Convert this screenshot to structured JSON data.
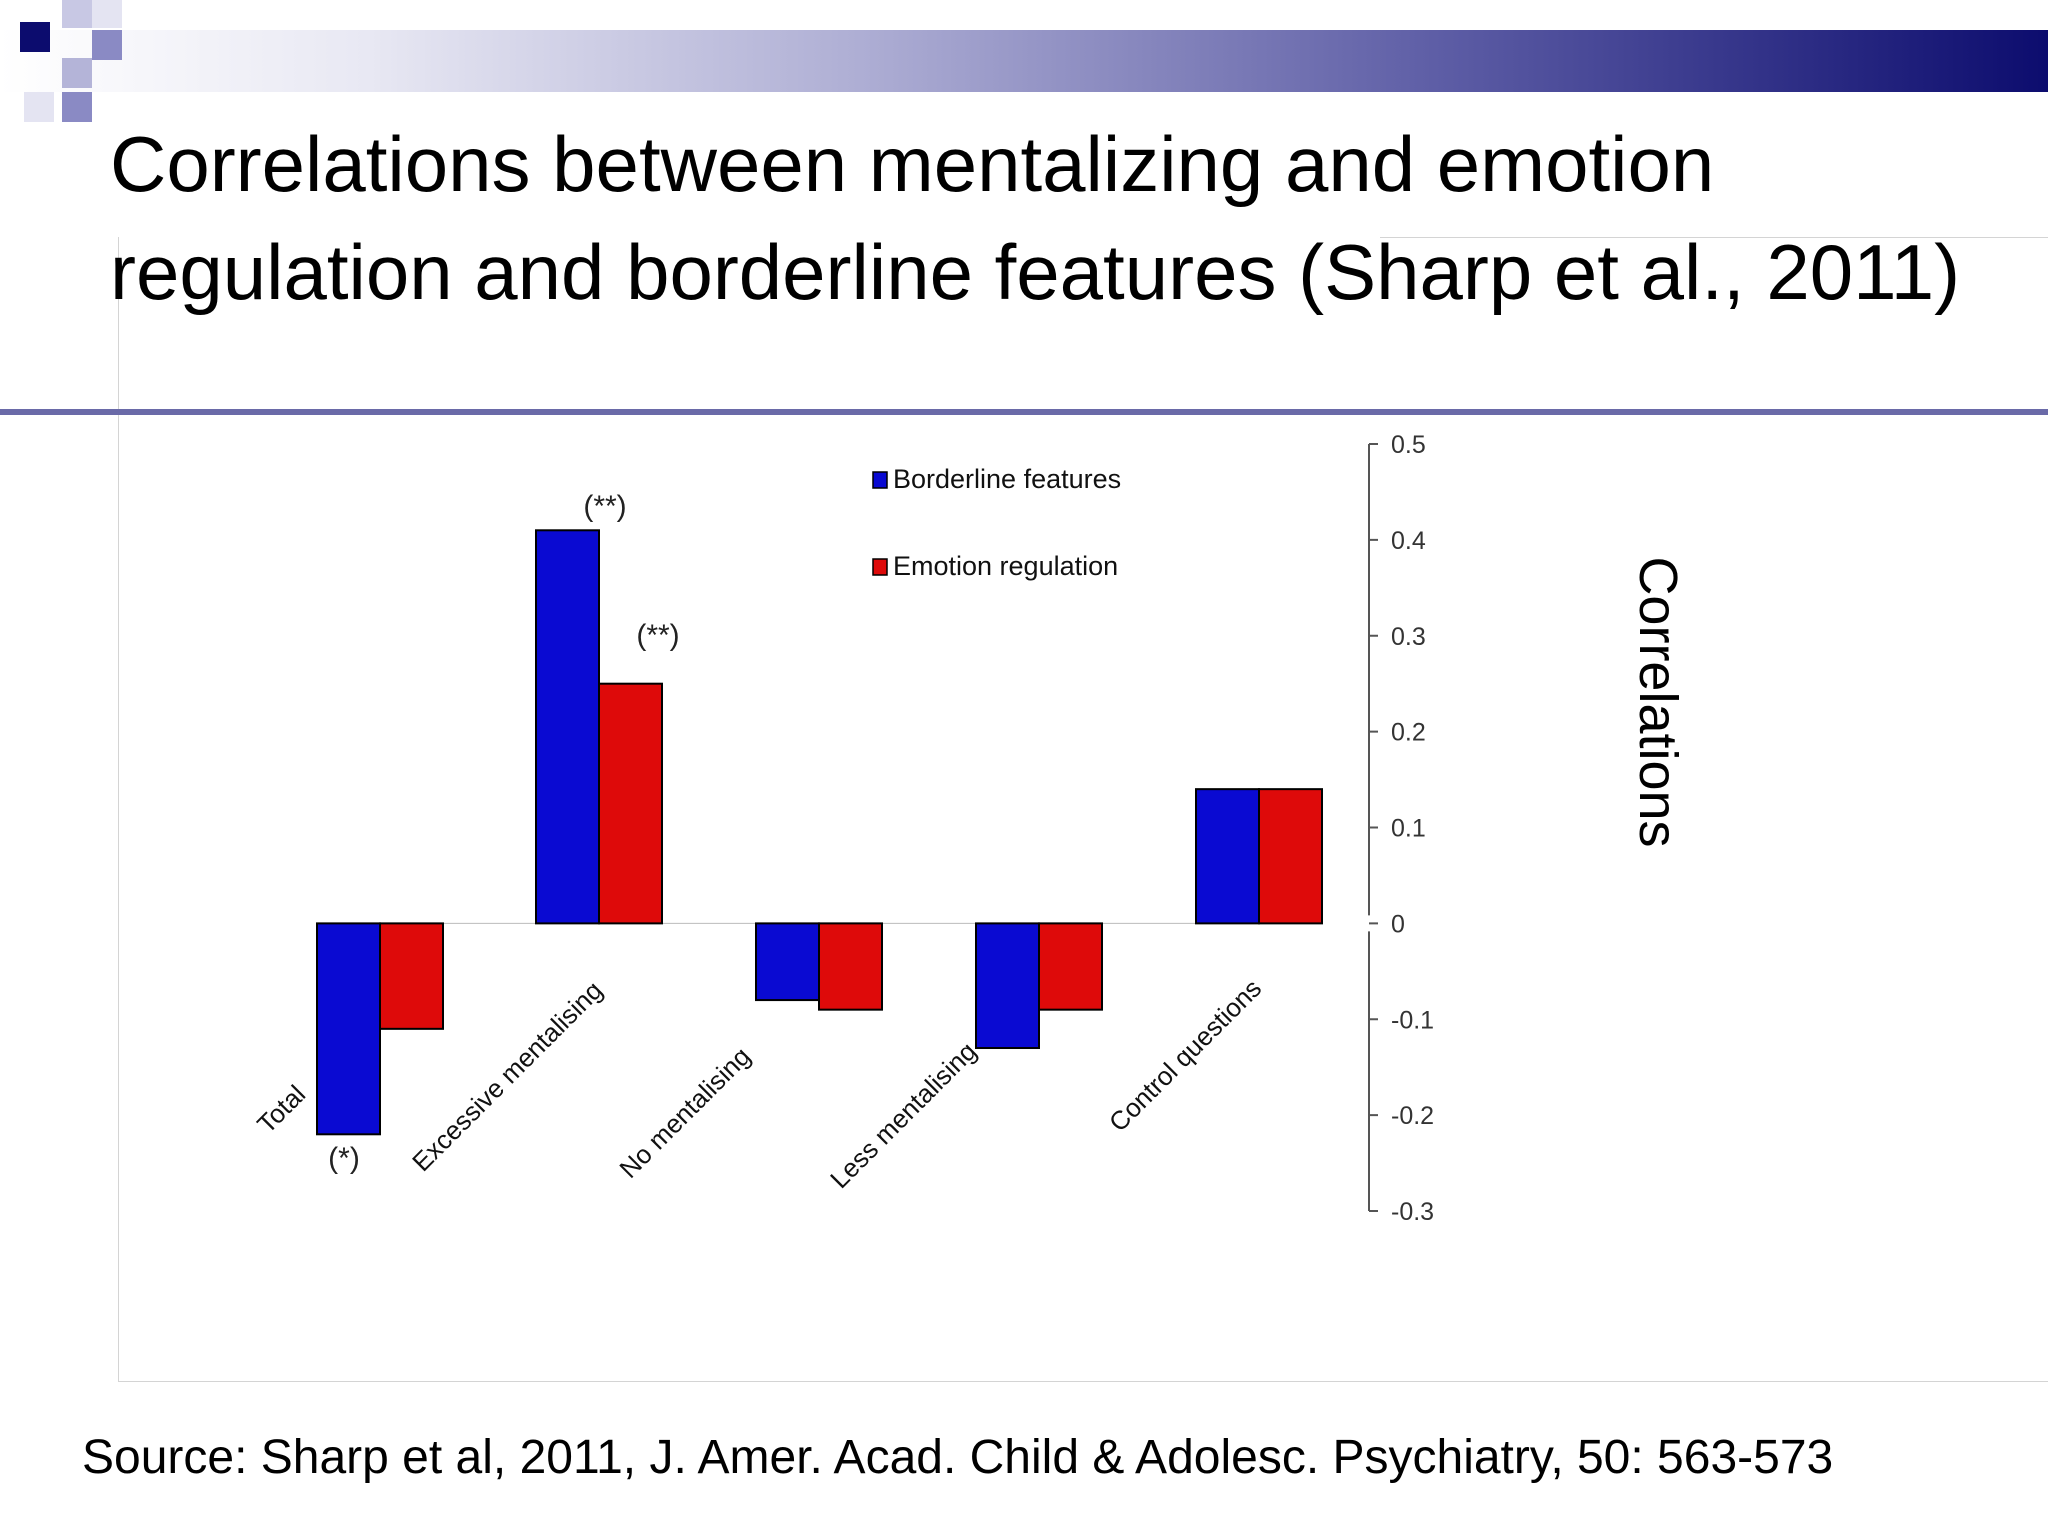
{
  "slide": {
    "title": "Correlations between mentalizing and emotion regulation and borderline features (Sharp et al., 2011)",
    "source": "Source: Sharp et al, 2011, J. Amer. Acad. Child & Adolesc. Psychiatry, 50: 563-573"
  },
  "colors": {
    "series_1": "#0a0ad2",
    "series_2": "#de0a0a",
    "header_dark": "#0c0c6e",
    "header_mid": "#8a8ac4"
  },
  "chart_data": {
    "type": "bar",
    "categories": [
      "Total",
      "Excessive mentalising",
      "No mentalising",
      "Less mentalising",
      "Control questions"
    ],
    "series": [
      {
        "name": "Borderline features",
        "values": [
          -0.22,
          0.41,
          -0.08,
          -0.13,
          0.14
        ]
      },
      {
        "name": "Emotion regulation",
        "values": [
          -0.11,
          0.25,
          -0.09,
          -0.09,
          0.14
        ]
      }
    ],
    "ylabel": "Correlations",
    "ylim": [
      -0.3,
      0.5
    ],
    "yticks": [
      "0.5",
      "0.4",
      "0.3",
      "0.2",
      "0.1",
      "0",
      "-0.1",
      "-0.2",
      "-0.3"
    ],
    "ytick_values": [
      0.5,
      0.4,
      0.3,
      0.2,
      0.1,
      0,
      -0.1,
      -0.2,
      -0.3
    ],
    "annotations": [
      {
        "text": "(*)",
        "category": 0,
        "series": 0
      },
      {
        "text": "(**)",
        "category": 1,
        "series": 0
      },
      {
        "text": "(**)",
        "category": 1,
        "series": 1
      }
    ],
    "legend": "top-center",
    "grid": false,
    "axis_side": "right"
  }
}
